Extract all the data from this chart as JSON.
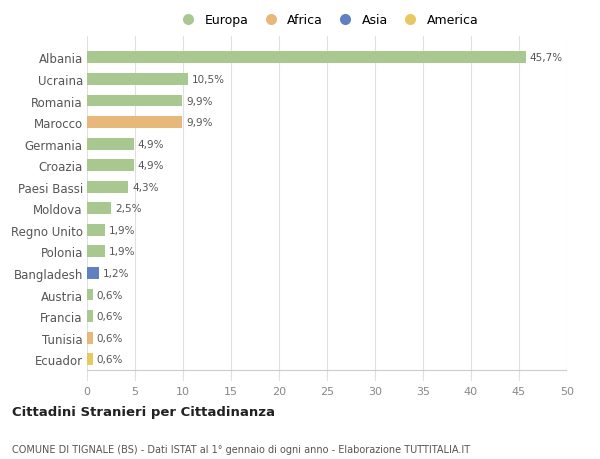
{
  "countries": [
    "Albania",
    "Ucraina",
    "Romania",
    "Marocco",
    "Germania",
    "Croazia",
    "Paesi Bassi",
    "Moldova",
    "Regno Unito",
    "Polonia",
    "Bangladesh",
    "Austria",
    "Francia",
    "Tunisia",
    "Ecuador"
  ],
  "values": [
    45.7,
    10.5,
    9.9,
    9.9,
    4.9,
    4.9,
    4.3,
    2.5,
    1.9,
    1.9,
    1.2,
    0.6,
    0.6,
    0.6,
    0.6
  ],
  "labels": [
    "45,7%",
    "10,5%",
    "9,9%",
    "9,9%",
    "4,9%",
    "4,9%",
    "4,3%",
    "2,5%",
    "1,9%",
    "1,9%",
    "1,2%",
    "0,6%",
    "0,6%",
    "0,6%",
    "0,6%"
  ],
  "colors": [
    "#a8c890",
    "#a8c890",
    "#a8c890",
    "#e8b87a",
    "#a8c890",
    "#a8c890",
    "#a8c890",
    "#a8c890",
    "#a8c890",
    "#a8c890",
    "#6080c0",
    "#a8c890",
    "#a8c890",
    "#e8b87a",
    "#e8c860"
  ],
  "legend_labels": [
    "Europa",
    "Africa",
    "Asia",
    "America"
  ],
  "legend_colors": [
    "#a8c890",
    "#e8b87a",
    "#6080c0",
    "#e8c860"
  ],
  "title": "Cittadini Stranieri per Cittadinanza",
  "subtitle": "COMUNE DI TIGNALE (BS) - Dati ISTAT al 1° gennaio di ogni anno - Elaborazione TUTTITALIA.IT",
  "xlim": [
    0,
    50
  ],
  "xticks": [
    0,
    5,
    10,
    15,
    20,
    25,
    30,
    35,
    40,
    45,
    50
  ],
  "bg_color": "#ffffff",
  "grid_color": "#e0e0e0",
  "bar_height": 0.55
}
